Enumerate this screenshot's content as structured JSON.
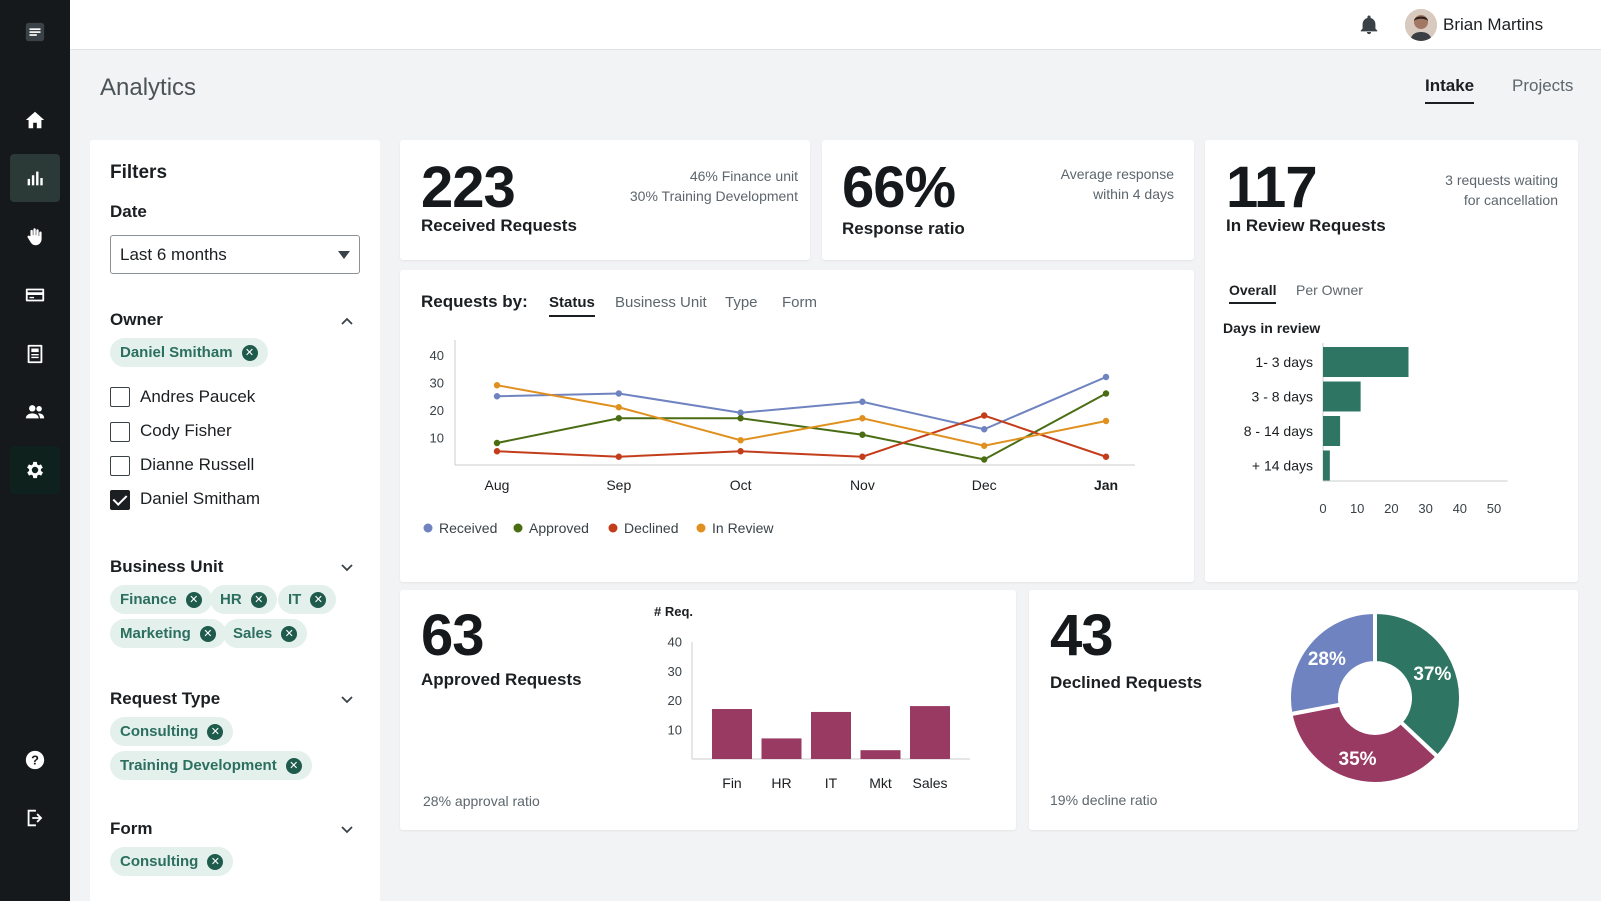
{
  "header": {
    "user_name": "Brian Martins"
  },
  "page": {
    "title": "Analytics",
    "tabs": [
      {
        "label": "Intake",
        "active": true
      },
      {
        "label": "Projects",
        "active": false
      }
    ]
  },
  "rail": {
    "items": [
      "menu-icon",
      "home-icon",
      "analytics-icon",
      "hand-icon",
      "card-icon",
      "document-icon",
      "users-icon",
      "settings-icon",
      "help-icon",
      "logout-icon"
    ]
  },
  "filters": {
    "title": "Filters",
    "date": {
      "label": "Date",
      "value": "Last 6 months"
    },
    "owner": {
      "label": "Owner",
      "chips": [
        "Daniel Smitham"
      ],
      "options": [
        {
          "label": "Andres Paucek",
          "checked": false
        },
        {
          "label": "Cody Fisher",
          "checked": false
        },
        {
          "label": "Dianne Russell",
          "checked": false
        },
        {
          "label": "Daniel Smitham",
          "checked": true
        }
      ]
    },
    "business_unit": {
      "label": "Business Unit",
      "chips": [
        "Finance",
        "HR",
        "IT",
        "Marketing",
        "Sales"
      ]
    },
    "request_type": {
      "label": "Request Type",
      "chips": [
        "Consulting",
        "Training Development"
      ]
    },
    "form": {
      "label": "Form",
      "chips": [
        "Consulting"
      ]
    }
  },
  "kpis": {
    "received": {
      "value": "223",
      "label": "Received Requests",
      "note1": "46% Finance unit",
      "note2": "30% Training Development"
    },
    "response": {
      "value": "66%",
      "label": "Response ratio",
      "note1": "Average response",
      "note2": "within 4 days"
    },
    "in_review": {
      "value": "117",
      "label": "In Review Requests",
      "note1": "3 requests waiting",
      "note2": "for cancellation"
    },
    "approved": {
      "value": "63",
      "label": "Approved Requests",
      "note": "28% approval ratio"
    },
    "declined": {
      "value": "43",
      "label": "Declined Requests",
      "note": "19% decline ratio"
    }
  },
  "requests_by": {
    "title": "Requests by:",
    "tabs": [
      {
        "label": "Status",
        "active": true
      },
      {
        "label": "Business Unit",
        "active": false
      },
      {
        "label": "Type",
        "active": false
      },
      {
        "label": "Form",
        "active": false
      }
    ]
  },
  "review_tabs": [
    {
      "label": "Overall",
      "active": true
    },
    {
      "label": "Per Owner",
      "active": false
    }
  ],
  "colors": {
    "accent_green": "#2f7563",
    "bar_magenta": "#993a63",
    "received": "#6f83c0",
    "approved": "#4a6d14",
    "declined": "#c33d1b",
    "in_review": "#e0901e",
    "pie_slate": "#6f83c0"
  },
  "chart_data": [
    {
      "type": "line",
      "title": "Requests by:",
      "x": [
        "Aug",
        "Sep",
        "Oct",
        "Nov",
        "Dec",
        "Jan"
      ],
      "ylim": [
        0,
        40
      ],
      "yticks": [
        10,
        20,
        30,
        40
      ],
      "grid": false,
      "legend": "bottom",
      "series": [
        {
          "name": "Received",
          "color": "#6f83c0",
          "values": [
            25,
            26,
            19,
            23,
            13,
            32
          ]
        },
        {
          "name": "Approved",
          "color": "#4a6d14",
          "values": [
            8,
            17,
            17,
            11,
            2,
            26
          ]
        },
        {
          "name": "Declined",
          "color": "#c33d1b",
          "values": [
            5,
            3,
            5,
            3,
            18,
            3
          ]
        },
        {
          "name": "In Review",
          "color": "#e0901e",
          "values": [
            29,
            21,
            9,
            17,
            7,
            16
          ]
        }
      ]
    },
    {
      "type": "bar",
      "orientation": "horizontal",
      "title": "Days in review",
      "categories": [
        "1- 3 days",
        "3 - 8 days",
        "8 - 14 days",
        "+ 14 days"
      ],
      "values": [
        25,
        11,
        5,
        2
      ],
      "xticks": [
        0,
        10,
        20,
        30,
        40,
        50
      ],
      "xlim": [
        0,
        54
      ],
      "color": "#2f7563"
    },
    {
      "type": "bar",
      "ylabel": "# Req.",
      "categories": [
        "Fin",
        "HR",
        "IT",
        "Mkt",
        "Sales"
      ],
      "values": [
        17,
        7,
        16,
        3,
        18
      ],
      "yticks": [
        10,
        20,
        30,
        40
      ],
      "ylim": [
        0,
        40
      ],
      "color": "#993a63"
    },
    {
      "type": "pie",
      "donut": true,
      "slices": [
        {
          "label": "37%",
          "value": 37,
          "color": "#2f7563"
        },
        {
          "label": "35%",
          "value": 35,
          "color": "#993a63"
        },
        {
          "label": "28%",
          "value": 28,
          "color": "#6f83c0"
        }
      ]
    }
  ]
}
